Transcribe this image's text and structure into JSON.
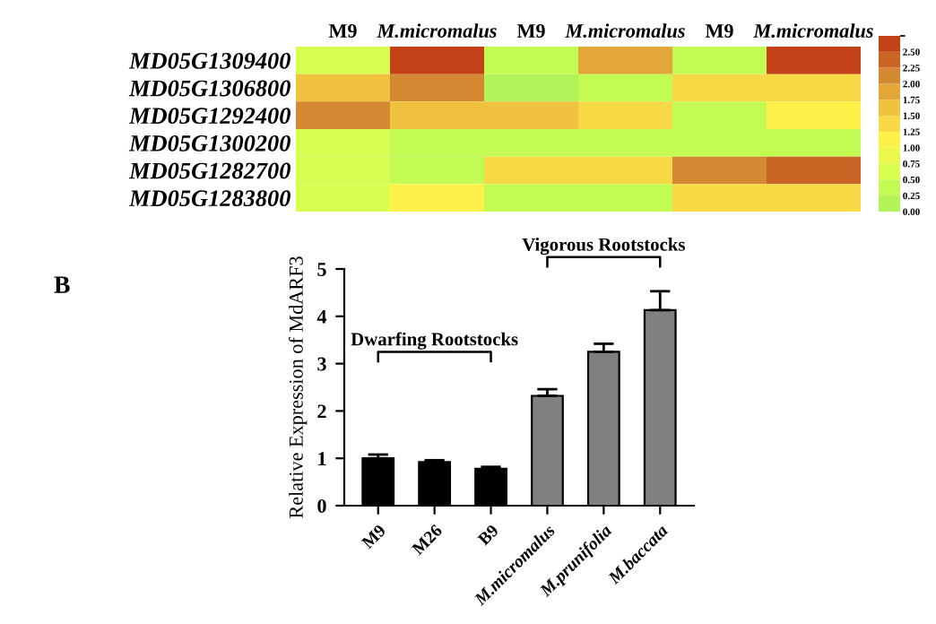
{
  "chart_data": [
    {
      "type": "heatmap",
      "categories": [
        "M9",
        "M.micromalus",
        "M9",
        "M.micromalus",
        "M9",
        "M.micromalus"
      ],
      "y_categories": [
        "MD05G1309400",
        "MD05G1306800",
        "MD05G1292400",
        "MD05G1300200",
        "MD05G1282700",
        "MD05G1283800"
      ],
      "cells": [
        [
          0.5,
          2.6,
          0.25,
          1.9,
          0.3,
          2.6
        ],
        [
          1.7,
          2.0,
          0.2,
          0.4,
          1.4,
          1.4
        ],
        [
          2.0,
          1.7,
          1.7,
          1.4,
          0.3,
          1.2
        ],
        [
          0.5,
          0.4,
          0.4,
          0.4,
          0.3,
          0.4
        ],
        [
          0.5,
          0.3,
          1.4,
          1.4,
          2.0,
          2.3
        ],
        [
          0.5,
          1.0,
          0.3,
          0.3,
          1.4,
          1.4
        ]
      ],
      "clim": [
        0,
        2.75
      ],
      "cticks": [
        {
          "value": 0,
          "label": "0.00"
        },
        {
          "value": 0.25,
          "label": "0.25"
        },
        {
          "value": 0.5,
          "label": "0.50"
        },
        {
          "value": 0.75,
          "label": "0.75"
        },
        {
          "value": 1.0,
          "label": "1.00"
        },
        {
          "value": 1.25,
          "label": "1.25"
        },
        {
          "value": 1.5,
          "label": "1.50"
        },
        {
          "value": 1.75,
          "label": "1.75"
        },
        {
          "value": 2.0,
          "label": "2.00"
        },
        {
          "value": 2.25,
          "label": "2.25"
        },
        {
          "value": 2.5,
          "label": "2.50"
        }
      ]
    },
    {
      "type": "bar",
      "ylabel": "Relative Expression of MdARF3",
      "categories": [
        "M9",
        "M26",
        "B9",
        "M.micromalus",
        "M.prunifolia",
        "M.baccata"
      ],
      "values": [
        1.0,
        0.92,
        0.78,
        2.32,
        3.25,
        4.13
      ],
      "errors": [
        0.08,
        0.04,
        0.04,
        0.14,
        0.17,
        0.4
      ],
      "colors": [
        "#000000",
        "#000000",
        "#000000",
        "#808080",
        "#808080",
        "#808080"
      ],
      "ylim": [
        0,
        5
      ],
      "yticks": [
        0,
        1,
        2,
        3,
        4,
        5
      ],
      "annotations": [
        "B",
        "Dwarfing Rootstocks",
        "Vigorous Rootstocks"
      ]
    }
  ]
}
